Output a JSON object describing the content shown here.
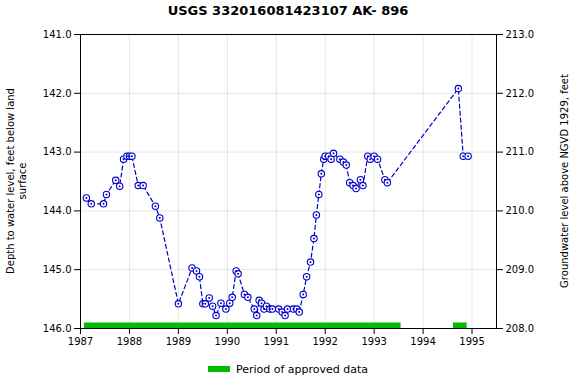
{
  "chart_data": {
    "type": "line",
    "title": "USGS 332016081423107 AK- 896",
    "y_label": "Depth to water level, feet below land\nsurface",
    "y2_label": "Groundwater level above NGVD 1929, feet",
    "x": [
      1987.12,
      1987.22,
      1987.47,
      1987.53,
      1987.72,
      1987.8,
      1987.88,
      1987.95,
      1988.0,
      1988.05,
      1988.18,
      1988.28,
      1988.53,
      1988.62,
      1989.0,
      1989.28,
      1989.37,
      1989.43,
      1989.5,
      1989.55,
      1989.63,
      1989.7,
      1989.77,
      1989.87,
      1989.97,
      1990.05,
      1990.1,
      1990.18,
      1990.22,
      1990.35,
      1990.42,
      1990.55,
      1990.6,
      1990.65,
      1990.7,
      1990.75,
      1990.8,
      1990.87,
      1990.92,
      1991.05,
      1991.12,
      1991.18,
      1991.23,
      1991.35,
      1991.42,
      1991.47,
      1991.55,
      1991.62,
      1991.7,
      1991.77,
      1991.82,
      1991.87,
      1991.92,
      1991.97,
      1992.0,
      1992.07,
      1992.12,
      1992.17,
      1992.3,
      1992.37,
      1992.43,
      1992.5,
      1992.57,
      1992.63,
      1992.72,
      1992.77,
      1992.87,
      1992.92,
      1993.0,
      1993.07,
      1993.22,
      1993.27,
      1994.72,
      1994.82,
      1994.92
    ],
    "values": [
      143.78,
      143.88,
      143.88,
      143.72,
      143.48,
      143.58,
      143.12,
      143.07,
      143.07,
      143.07,
      143.57,
      143.57,
      143.92,
      144.12,
      145.58,
      144.97,
      145.02,
      145.12,
      145.58,
      145.58,
      145.48,
      145.62,
      145.78,
      145.57,
      145.67,
      145.57,
      145.47,
      145.02,
      145.07,
      145.42,
      145.47,
      145.67,
      145.78,
      145.52,
      145.57,
      145.67,
      145.62,
      145.67,
      145.67,
      145.67,
      145.72,
      145.78,
      145.67,
      145.67,
      145.67,
      145.72,
      145.42,
      145.12,
      144.87,
      144.47,
      144.07,
      143.72,
      143.37,
      143.12,
      143.07,
      143.07,
      143.12,
      143.02,
      143.12,
      143.17,
      143.22,
      143.52,
      143.57,
      143.62,
      143.47,
      143.57,
      143.07,
      143.12,
      143.07,
      143.12,
      143.47,
      143.52,
      141.92,
      143.07,
      143.07
    ],
    "color": "#0000cc",
    "marker": "circle",
    "line_style": "dashed",
    "xlim": [
      1987.0,
      1995.5
    ],
    "xticks": [
      1987,
      1988,
      1989,
      1990,
      1991,
      1992,
      1993,
      1994,
      1995
    ],
    "ylim": [
      146.0,
      141.0
    ],
    "yticks": [
      {
        "value": 141.0,
        "label": "141.0"
      },
      {
        "value": 142.0,
        "label": "142.0"
      },
      {
        "value": 143.0,
        "label": "143.0"
      },
      {
        "value": 144.0,
        "label": "144.0"
      },
      {
        "value": 145.0,
        "label": "145.0"
      },
      {
        "value": 146.0,
        "label": "146.0"
      }
    ],
    "y2lim": [
      208.0,
      213.0
    ],
    "y2ticks": [
      {
        "value": 208.0,
        "label": "208.0"
      },
      {
        "value": 209.0,
        "label": "209.0"
      },
      {
        "value": 210.0,
        "label": "210.0"
      },
      {
        "value": 211.0,
        "label": "211.0"
      },
      {
        "value": 212.0,
        "label": "212.0"
      },
      {
        "value": 213.0,
        "label": "213.0"
      }
    ],
    "grid": true,
    "legend": "bottom",
    "approved_periods": {
      "name": "Period of approved data",
      "color": "#00bb00",
      "periods": [
        [
          1987.08,
          1993.55
        ],
        [
          1994.62,
          1994.9
        ]
      ]
    }
  }
}
